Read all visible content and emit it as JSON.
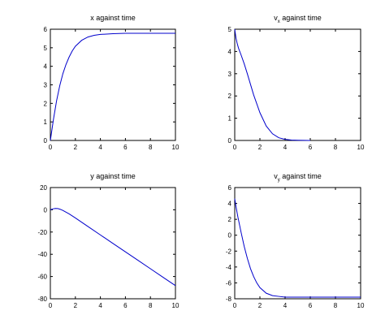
{
  "chart_data": [
    {
      "type": "line",
      "title": "x against time",
      "xlim": [
        0,
        10
      ],
      "ylim": [
        0,
        6
      ],
      "xticks": [
        0,
        2,
        4,
        6,
        8,
        10
      ],
      "yticks": [
        0,
        1,
        2,
        3,
        4,
        5,
        6
      ],
      "series_color": "#0000cc",
      "grid": false,
      "x": [
        0,
        0.25,
        0.5,
        0.75,
        1,
        1.25,
        1.5,
        1.75,
        2,
        2.5,
        3,
        3.5,
        4,
        5,
        6,
        7,
        8,
        9,
        10
      ],
      "values": [
        0,
        1.15,
        2.15,
        2.95,
        3.6,
        4.1,
        4.5,
        4.83,
        5.08,
        5.4,
        5.58,
        5.67,
        5.72,
        5.76,
        5.78,
        5.78,
        5.78,
        5.78,
        5.78
      ]
    },
    {
      "type": "line",
      "title": "vx against time",
      "title_main": "v",
      "title_sub": "x",
      "title_rest": " against time",
      "xlim": [
        0,
        10
      ],
      "ylim": [
        0,
        5
      ],
      "xticks": [
        0,
        2,
        4,
        6,
        8,
        10
      ],
      "yticks": [
        0,
        1,
        2,
        3,
        4,
        5
      ],
      "series_color": "#0000cc",
      "grid": false,
      "x": [
        0,
        0.1,
        0.2,
        0.3,
        0.5,
        0.75,
        1,
        1.5,
        2,
        2.5,
        3,
        3.5,
        4,
        4.5,
        5,
        6
      ],
      "values": [
        5,
        4.6,
        4.35,
        4.15,
        3.85,
        3.45,
        3.0,
        2.05,
        1.25,
        0.65,
        0.3,
        0.12,
        0.05,
        0.02,
        0.01,
        0
      ]
    },
    {
      "type": "line",
      "title": "y against time",
      "xlim": [
        0,
        10
      ],
      "ylim": [
        -80,
        20
      ],
      "xticks": [
        0,
        2,
        4,
        6,
        8,
        10
      ],
      "yticks": [
        -80,
        -60,
        -40,
        -20,
        0,
        20
      ],
      "series_color": "#0000cc",
      "grid": false,
      "x": [
        0,
        0.2,
        0.4,
        0.6,
        0.8,
        1,
        1.5,
        2,
        3,
        4,
        5,
        6,
        7,
        8,
        9,
        10
      ],
      "values": [
        0,
        0.8,
        1.2,
        1.1,
        0.4,
        -0.6,
        -3.7,
        -7.3,
        -15,
        -22.6,
        -30.2,
        -37.8,
        -45.4,
        -53,
        -60.6,
        -68.2
      ]
    },
    {
      "type": "line",
      "title": "vy against time",
      "title_main": "v",
      "title_sub": "y",
      "title_rest": " against time",
      "xlim": [
        0,
        10
      ],
      "ylim": [
        -8,
        6
      ],
      "xticks": [
        0,
        2,
        4,
        6,
        8,
        10
      ],
      "yticks": [
        -8,
        -6,
        -4,
        -2,
        0,
        2,
        4,
        6
      ],
      "series_color": "#0000cc",
      "grid": false,
      "x": [
        0,
        0.1,
        0.25,
        0.5,
        0.75,
        1,
        1.25,
        1.5,
        1.75,
        2,
        2.5,
        3,
        3.5,
        4,
        5,
        6,
        8,
        10
      ],
      "values": [
        4.6,
        3.6,
        2.3,
        0.4,
        -1.4,
        -2.9,
        -4.2,
        -5.2,
        -6.0,
        -6.6,
        -7.3,
        -7.6,
        -7.7,
        -7.8,
        -7.8,
        -7.8,
        -7.8,
        -7.8
      ]
    }
  ]
}
